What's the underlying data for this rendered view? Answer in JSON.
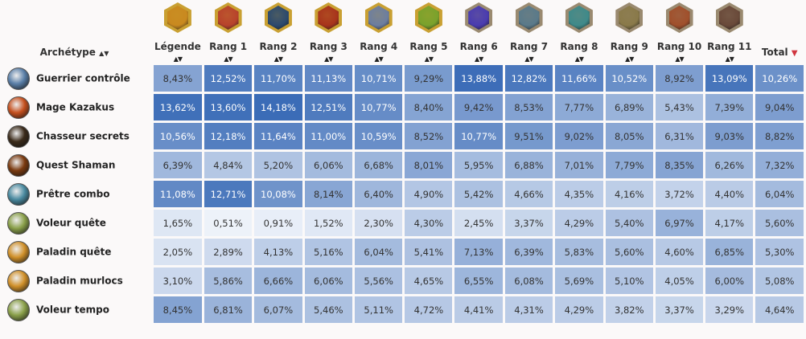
{
  "header": {
    "archetype_label": "Archétype",
    "sort_icon": "sort-up-down-icon",
    "total_label": "Total",
    "total_sort_icon": "sort-down-active-icon",
    "columns": [
      {
        "label": "Légende",
        "icon": "legend-rank-icon",
        "color": "#c9891f"
      },
      {
        "label": "Rang 1",
        "icon": "rank-1-icon",
        "color": "#b8432c"
      },
      {
        "label": "Rang 2",
        "icon": "rank-2-icon",
        "color": "#2c4a6e"
      },
      {
        "label": "Rang 3",
        "icon": "rank-3-icon",
        "color": "#a8341c"
      },
      {
        "label": "Rang 4",
        "icon": "rank-4-icon",
        "color": "#6c7ea0"
      },
      {
        "label": "Rang 5",
        "icon": "rank-5-icon",
        "color": "#7aa22c"
      },
      {
        "label": "Rang 6",
        "icon": "rank-6-icon",
        "color": "#4a3cb0"
      },
      {
        "label": "Rang 7",
        "icon": "rank-7-icon",
        "color": "#5a7a8a"
      },
      {
        "label": "Rang 8",
        "icon": "rank-8-icon",
        "color": "#3f8a8a"
      },
      {
        "label": "Rang 9",
        "icon": "rank-9-icon",
        "color": "#8a7a4a"
      },
      {
        "label": "Rang 10",
        "icon": "rank-10-icon",
        "color": "#a0502c"
      },
      {
        "label": "Rang 11",
        "icon": "rank-11-icon",
        "color": "#6a4a3a"
      }
    ]
  },
  "colors": {
    "low": "#f4f7fc",
    "high": "#3b6cb7",
    "text_dark": "#333333",
    "text_light": "#ffffff"
  },
  "chart_data": {
    "type": "heatmap",
    "columns": [
      "Légende",
      "Rang 1",
      "Rang 2",
      "Rang 3",
      "Rang 4",
      "Rang 5",
      "Rang 6",
      "Rang 7",
      "Rang 8",
      "Rang 9",
      "Rang 10",
      "Rang 11",
      "Total"
    ],
    "rows": [
      {
        "name": "Guerrier contrôle",
        "icon": "warrior-class-icon",
        "icon_color": "#5a7fa8",
        "values": [
          "8,43%",
          "12,52%",
          "11,70%",
          "11,13%",
          "10,71%",
          "9,29%",
          "13,88%",
          "12,82%",
          "11,66%",
          "10,52%",
          "8,92%",
          "13,09%",
          "10,26%"
        ]
      },
      {
        "name": "Mage Kazakus",
        "icon": "mage-class-icon",
        "icon_color": "#c5501e",
        "values": [
          "13,62%",
          "13,60%",
          "14,18%",
          "12,51%",
          "10,77%",
          "8,40%",
          "9,42%",
          "8,53%",
          "7,77%",
          "6,89%",
          "5,43%",
          "7,39%",
          "9,04%"
        ]
      },
      {
        "name": "Chasseur secrets",
        "icon": "hunter-class-icon",
        "icon_color": "#3a2a1a",
        "values": [
          "10,56%",
          "12,18%",
          "11,64%",
          "11,00%",
          "10,59%",
          "8,52%",
          "10,77%",
          "9,51%",
          "9,02%",
          "8,05%",
          "6,31%",
          "9,03%",
          "8,82%"
        ]
      },
      {
        "name": "Quest Shaman",
        "icon": "shaman-class-icon",
        "icon_color": "#7a3a10",
        "values": [
          "6,39%",
          "4,84%",
          "5,20%",
          "6,06%",
          "6,68%",
          "8,01%",
          "5,95%",
          "6,88%",
          "7,01%",
          "7,79%",
          "8,35%",
          "6,26%",
          "7,32%"
        ]
      },
      {
        "name": "Prêtre combo",
        "icon": "priest-class-icon",
        "icon_color": "#4a8aa0",
        "values": [
          "11,08%",
          "12,71%",
          "10,08%",
          "8,14%",
          "6,40%",
          "4,90%",
          "5,42%",
          "4,66%",
          "4,35%",
          "4,16%",
          "3,72%",
          "4,40%",
          "6,04%"
        ]
      },
      {
        "name": "Voleur quête",
        "icon": "rogue-class-icon",
        "icon_color": "#8aa04a",
        "values": [
          "1,65%",
          "0,51%",
          "0,91%",
          "1,52%",
          "2,30%",
          "4,30%",
          "2,45%",
          "3,37%",
          "4,29%",
          "5,40%",
          "6,97%",
          "4,17%",
          "5,60%"
        ]
      },
      {
        "name": "Paladin quête",
        "icon": "paladin-class-icon",
        "icon_color": "#d0902a",
        "values": [
          "2,05%",
          "2,89%",
          "4,13%",
          "5,16%",
          "6,04%",
          "5,41%",
          "7,13%",
          "6,39%",
          "5,83%",
          "5,60%",
          "4,60%",
          "6,85%",
          "5,30%"
        ]
      },
      {
        "name": "Paladin murlocs",
        "icon": "paladin-class-icon",
        "icon_color": "#d0902a",
        "values": [
          "3,10%",
          "5,86%",
          "6,66%",
          "6,06%",
          "5,56%",
          "4,65%",
          "6,55%",
          "6,08%",
          "5,69%",
          "5,10%",
          "4,05%",
          "6,00%",
          "5,08%"
        ]
      },
      {
        "name": "Voleur tempo",
        "icon": "rogue-class-icon",
        "icon_color": "#8aa04a",
        "values": [
          "8,45%",
          "6,81%",
          "6,07%",
          "5,46%",
          "5,11%",
          "4,72%",
          "4,41%",
          "4,31%",
          "4,29%",
          "3,82%",
          "3,37%",
          "3,29%",
          "4,64%"
        ]
      }
    ]
  }
}
